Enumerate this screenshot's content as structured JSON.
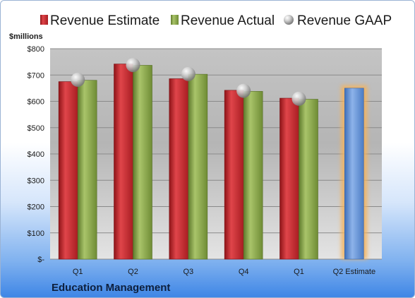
{
  "chart_data": {
    "type": "bar",
    "ylabel": "$millions",
    "ylim": [
      0,
      800
    ],
    "yticks": [
      0,
      100,
      200,
      300,
      400,
      500,
      600,
      700,
      800
    ],
    "ytick_labels": [
      "$-",
      "$100",
      "$200",
      "$300",
      "$400",
      "$500",
      "$600",
      "$700",
      "$800"
    ],
    "categories": [
      "Q1",
      "Q2",
      "Q3",
      "Q4",
      "Q1",
      "Q2 Estimate"
    ],
    "series": [
      {
        "name": "Revenue Estimate",
        "color": "#c0282d",
        "marker": "bar",
        "values": [
          675,
          742,
          686,
          642,
          612,
          null
        ]
      },
      {
        "name": "Revenue Actual",
        "color": "#86a446",
        "marker": "bar",
        "values": [
          680,
          737,
          703,
          638,
          608,
          null
        ]
      },
      {
        "name": "Revenue GAAP",
        "color": "#b8b8b8",
        "marker": "circle",
        "values": [
          682,
          738,
          704,
          640,
          610,
          null
        ]
      }
    ],
    "highlight": {
      "category_index": 5,
      "value": 650,
      "color": "#5b8fd6",
      "glow": "#f5b25a"
    },
    "legend_position": "top",
    "grid": true
  },
  "footer": {
    "company": "Education Management"
  }
}
